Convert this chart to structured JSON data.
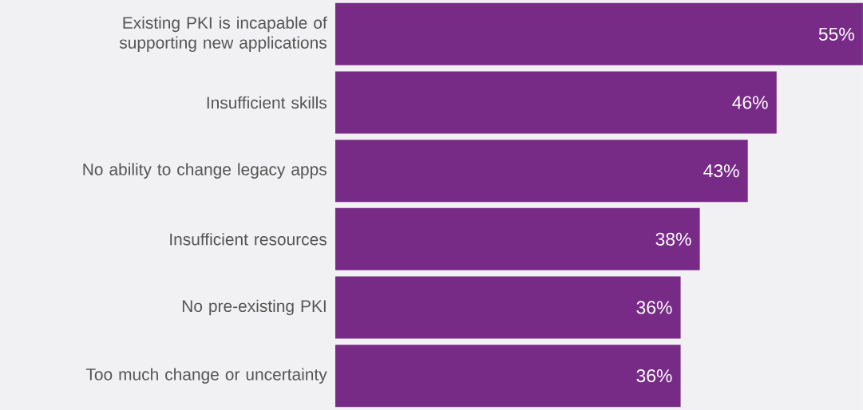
{
  "chart_data": {
    "type": "bar",
    "orientation": "horizontal",
    "categories": [
      "Existing PKI is incapable of supporting new applications",
      "Insufficient skills",
      "No ability to change legacy apps",
      "Insufficient resources",
      "No pre-existing PKI",
      "Too much change or uncertainty"
    ],
    "values": [
      55,
      46,
      43,
      38,
      36,
      36
    ],
    "value_labels": [
      "55%",
      "46%",
      "43%",
      "38%",
      "36%",
      "36%"
    ],
    "color": "#772b87",
    "xlim": [
      0,
      55
    ],
    "tick_labels": "y"
  }
}
